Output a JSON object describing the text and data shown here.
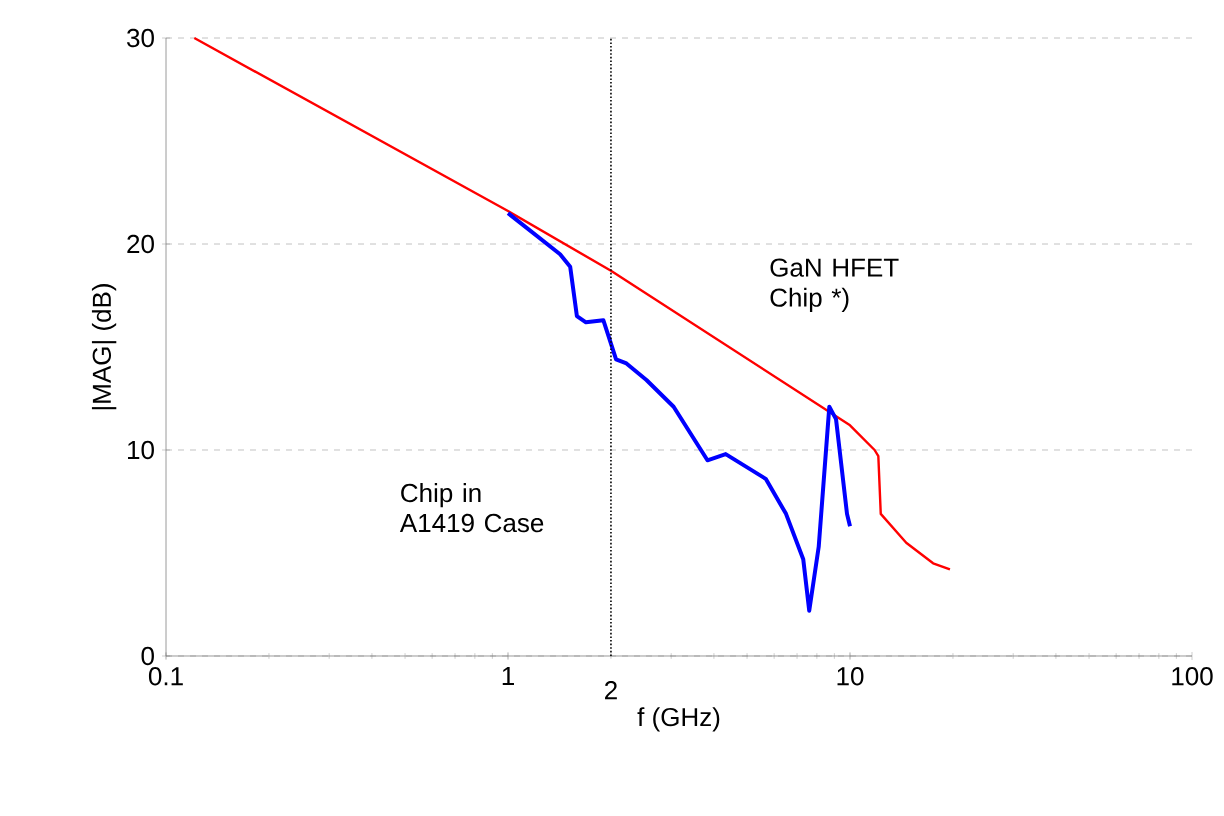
{
  "chart_data": {
    "type": "line",
    "xlabel": "f (GHz)",
    "ylabel": "|MAG| (dB)",
    "log": "x",
    "xlim": [
      0.1,
      100
    ],
    "ylim": [
      0,
      30
    ],
    "xticks": [
      0.1,
      1,
      10,
      100
    ],
    "yticks": [
      0,
      10,
      20,
      30
    ],
    "grid": "y",
    "marker": "none",
    "line_style": "solid",
    "series": [
      {
        "color": "#ff0000",
        "x": [
          0.121,
          1,
          2,
          10,
          11.8,
          12.1,
          12.3,
          14.6,
          17.5,
          19.6
        ],
        "values": [
          30,
          21.6,
          18.7,
          11.2,
          10.0,
          9.7,
          6.9,
          5.5,
          4.5,
          4.2
        ]
      },
      {
        "color": "#0000ff",
        "x": [
          1.0,
          1.42,
          1.52,
          1.59,
          1.69,
          1.9,
          2.07,
          2.22,
          2.54,
          3.05,
          3.83,
          4.33,
          5.67,
          6.5,
          7.3,
          7.6,
          8.1,
          8.7,
          9.1,
          9.8,
          10.0
        ],
        "values": [
          21.5,
          19.5,
          18.9,
          16.5,
          16.2,
          16.3,
          14.4,
          14.2,
          13.4,
          12.1,
          9.5,
          9.8,
          8.6,
          6.9,
          4.7,
          2.2,
          5.3,
          12.1,
          11.5,
          6.9,
          6.3
        ]
      }
    ],
    "ref_lines": [
      {
        "axis": "x",
        "value": 2,
        "label": "2",
        "line_style": "dotted",
        "color": "#000000"
      }
    ],
    "annotations": [
      "GaN HFET Chip *)",
      "Chip in A1419 Case"
    ]
  }
}
